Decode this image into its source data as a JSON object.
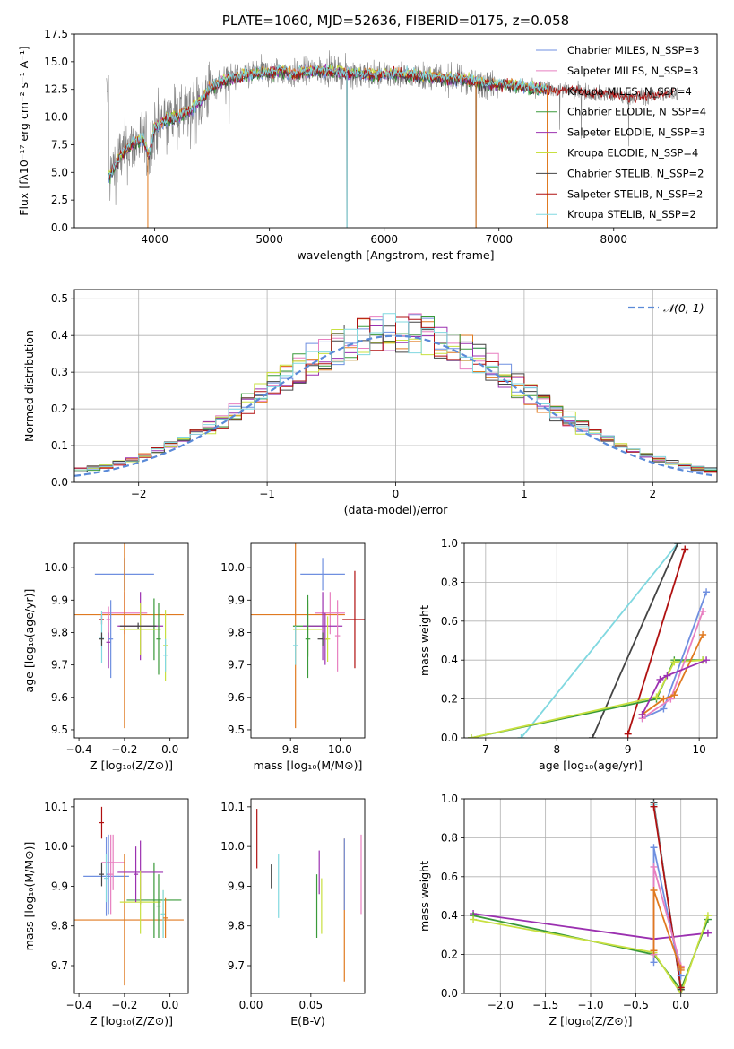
{
  "colors": {
    "chabrier_miles": "#6f8fe0",
    "salpeter_miles": "#e87fc0",
    "kroupa_miles": "#e07a20",
    "chabrier_elodie": "#3a9a3a",
    "salpeter_elodie": "#9b30b0",
    "kroupa_elodie": "#c8e040",
    "chabrier_stelib": "#444444",
    "salpeter_stelib": "#b01010",
    "kroupa_stelib": "#80d8e0",
    "data_gray": "#808080",
    "normal": "#5a8ad8"
  },
  "chart_data": [
    {
      "id": "spectrum",
      "type": "line",
      "title": "PLATE=1060, MJD=52636, FIBERID=0175, z=0.058",
      "xlabel": "wavelength [Angstrom, rest frame]",
      "ylabel": "Flux [fλ10⁻¹⁷ erg cm⁻² s⁻¹ A⁻¹]",
      "xlim": [
        3300,
        8900
      ],
      "ylim": [
        0,
        17.5
      ],
      "xticks": [
        "4000",
        "5000",
        "6000",
        "7000",
        "8000"
      ],
      "yticks": [
        "0.0",
        "2.5",
        "5.0",
        "7.5",
        "10.0",
        "12.5",
        "15.0",
        "17.5"
      ],
      "legend_position": "top-right",
      "legend": [
        "Chabrier MILES, N_SSP=3",
        "Salpeter MILES, N_SSP=3",
        "Kroupa MILES, N_SSP=4",
        "Chabrier ELODIE, N_SSP=4",
        "Salpeter ELODIE, N_SSP=3",
        "Kroupa ELODIE, N_SSP=4",
        "Chabrier STELIB, N_SSP=2",
        "Salpeter STELIB, N_SSP=2",
        "Kroupa STELIB, N_SSP=2"
      ],
      "continuum_points": [
        [
          3600,
          4.5
        ],
        [
          3700,
          6.5
        ],
        [
          3800,
          7.5
        ],
        [
          3900,
          8.0
        ],
        [
          3950,
          6.5
        ],
        [
          4000,
          9.0
        ],
        [
          4100,
          9.8
        ],
        [
          4200,
          10.0
        ],
        [
          4300,
          10.5
        ],
        [
          4400,
          11.5
        ],
        [
          4500,
          12.8
        ],
        [
          4600,
          13.3
        ],
        [
          4700,
          13.6
        ],
        [
          4800,
          13.8
        ],
        [
          4900,
          14.0
        ],
        [
          5000,
          14.0
        ],
        [
          5100,
          14.2
        ],
        [
          5200,
          13.8
        ],
        [
          5300,
          14.1
        ],
        [
          5500,
          14.2
        ],
        [
          5700,
          14.0
        ],
        [
          5900,
          13.8
        ],
        [
          6100,
          13.9
        ],
        [
          6300,
          13.7
        ],
        [
          6500,
          13.5
        ],
        [
          6700,
          13.4
        ],
        [
          6900,
          13.0
        ],
        [
          7100,
          12.9
        ],
        [
          7300,
          12.6
        ],
        [
          7500,
          12.5
        ],
        [
          7700,
          12.3
        ],
        [
          7900,
          12.1
        ],
        [
          8100,
          11.8
        ],
        [
          8300,
          11.9
        ],
        [
          8500,
          12.1
        ]
      ],
      "model_end_wavelength": 7420,
      "gray_end_wavelength": 8560
    },
    {
      "id": "residuals",
      "type": "histogram",
      "xlabel": "(data-model)/error",
      "ylabel": "Normed distribution",
      "xlim": [
        -2.5,
        2.5
      ],
      "ylim": [
        0,
        0.525
      ],
      "xticks": [
        "−2",
        "−1",
        "0",
        "1",
        "2"
      ],
      "yticks": [
        "0.0",
        "0.1",
        "0.2",
        "0.3",
        "0.4",
        "0.5"
      ],
      "grid": true,
      "legend_position": "top-right",
      "normal_label": "𝒩(0, 1)",
      "bin_width": 0.1
    },
    {
      "id": "age_vs_Z",
      "type": "scatter",
      "xlabel": "Z [log₁₀(Z/Z⊙)]",
      "ylabel": "age  [log₁₀(age/yr)]",
      "xlim": [
        -0.42,
        0.08
      ],
      "ylim": [
        9.475,
        10.075
      ],
      "xticks": [
        "−0.4",
        "−0.2",
        "0.0"
      ],
      "yticks": [
        "9.5",
        "9.6",
        "9.7",
        "9.8",
        "9.9",
        "10.0"
      ],
      "points": [
        {
          "series": "chabrier_miles",
          "x": -0.2,
          "xerr": 0.13,
          "y": 9.98,
          "yerr": 0.05
        },
        {
          "series": "salpeter_miles",
          "x": -0.2,
          "xerr": 0.1,
          "y": 9.86,
          "yerr": 0.065
        },
        {
          "series": "kroupa_miles",
          "x": -0.2,
          "xerr": 0.26,
          "y": 9.855,
          "yerr": 0.35
        },
        {
          "series": "chabrier_elodie",
          "x": -0.07,
          "xerr": 0.03,
          "y": 9.81,
          "yerr": 0.095
        },
        {
          "series": "salpeter_elodie",
          "x": -0.13,
          "xerr": 0.1,
          "y": 9.82,
          "yerr": 0.105
        },
        {
          "series": "kroupa_elodie",
          "x": -0.13,
          "xerr": 0.09,
          "y": 9.81,
          "yerr": 0.08
        },
        {
          "series": "chabrier_stelib",
          "x": -0.14,
          "xerr": 0.08,
          "y": 9.82,
          "yerr": 0.01
        },
        {
          "series": "salpeter_stelib",
          "x": -0.3,
          "xerr": 0.01,
          "y": 9.84,
          "yerr": 0.015
        },
        {
          "series": "kroupa_stelib",
          "x": -0.3,
          "xerr": 0.01,
          "y": 9.785,
          "yerr": 0.08
        },
        {
          "series": "chabrier_stelib",
          "x": -0.3,
          "xerr": 0.01,
          "y": 9.78,
          "yerr": 0.02
        },
        {
          "series": "salpeter_elodie",
          "x": -0.27,
          "xerr": 0.01,
          "y": 9.77,
          "yerr": 0.08
        },
        {
          "series": "chabrier_miles",
          "x": -0.26,
          "xerr": 0.01,
          "y": 9.78,
          "yerr": 0.12
        },
        {
          "series": "salpeter_miles",
          "x": -0.27,
          "xerr": 0.01,
          "y": 9.84,
          "yerr": 0.04
        },
        {
          "series": "kroupa_elodie",
          "x": -0.02,
          "xerr": 0.01,
          "y": 9.76,
          "yerr": 0.11
        },
        {
          "series": "kroupa_stelib",
          "x": -0.02,
          "xerr": 0.01,
          "y": 9.73,
          "yerr": 0.05
        },
        {
          "series": "chabrier_elodie",
          "x": -0.05,
          "xerr": 0.01,
          "y": 9.78,
          "yerr": 0.11
        }
      ]
    },
    {
      "id": "age_vs_mass",
      "type": "scatter",
      "xlabel": "mass [log₁₀(M/M⊙)]",
      "ylabel": "",
      "xlim": [
        9.64,
        10.1
      ],
      "ylim": [
        9.475,
        10.075
      ],
      "xticks": [
        "9.8",
        "10.0"
      ],
      "yticks": [
        "9.5",
        "9.6",
        "9.7",
        "9.8",
        "9.9",
        "10.0"
      ],
      "points": [
        {
          "series": "chabrier_miles",
          "x": 9.93,
          "xerr": 0.09,
          "y": 9.98,
          "yerr": 0.05
        },
        {
          "series": "salpeter_miles",
          "x": 9.96,
          "xerr": 0.06,
          "y": 9.86,
          "yerr": 0.065
        },
        {
          "series": "kroupa_miles",
          "x": 9.82,
          "xerr": 0.2,
          "y": 9.855,
          "yerr": 0.35
        },
        {
          "series": "chabrier_elodie",
          "x": 9.87,
          "xerr": 0.06,
          "y": 9.82,
          "yerr": 0.095
        },
        {
          "series": "salpeter_elodie",
          "x": 9.93,
          "xerr": 0.08,
          "y": 9.82,
          "yerr": 0.105
        },
        {
          "series": "kroupa_elodie",
          "x": 9.87,
          "xerr": 0.06,
          "y": 9.81,
          "yerr": 0.08
        },
        {
          "series": "chabrier_stelib",
          "x": 9.93,
          "xerr": 0.02,
          "y": 9.78,
          "yerr": 0.02
        },
        {
          "series": "salpeter_stelib",
          "x": 10.06,
          "xerr": 0.05,
          "y": 9.84,
          "yerr": 0.15
        },
        {
          "series": "kroupa_stelib",
          "x": 9.82,
          "xerr": 0.01,
          "y": 9.76,
          "yerr": 0.06
        },
        {
          "series": "salpeter_miles",
          "x": 9.99,
          "xerr": 0.01,
          "y": 9.79,
          "yerr": 0.11
        },
        {
          "series": "chabrier_elodie",
          "x": 9.87,
          "xerr": 0.01,
          "y": 9.78,
          "yerr": 0.12
        },
        {
          "series": "salpeter_elodie",
          "x": 9.94,
          "xerr": 0.01,
          "y": 9.78,
          "yerr": 0.08
        },
        {
          "series": "kroupa_elodie",
          "x": 9.95,
          "xerr": 0.01,
          "y": 9.78,
          "yerr": 0.07
        }
      ]
    },
    {
      "id": "mw_vs_age",
      "type": "line",
      "xlabel": "age  [log₁₀(age/yr)]",
      "ylabel": "mass weight",
      "xlim": [
        6.7,
        10.25
      ],
      "ylim": [
        0,
        1
      ],
      "xticks": [
        "7",
        "8",
        "9",
        "10"
      ],
      "yticks": [
        "0.0",
        "0.2",
        "0.4",
        "0.6",
        "0.8",
        "1.0"
      ],
      "grid": true,
      "series": [
        {
          "key": "kroupa_stelib",
          "x": [
            7.5,
            9.7
          ],
          "y": [
            0.0,
            1.0
          ]
        },
        {
          "key": "chabrier_stelib",
          "x": [
            8.5,
            9.7
          ],
          "y": [
            0.0,
            1.0
          ]
        },
        {
          "key": "salpeter_stelib",
          "x": [
            9.0,
            9.8
          ],
          "y": [
            0.02,
            0.97
          ]
        },
        {
          "key": "chabrier_elodie",
          "x": [
            6.8,
            9.4,
            9.65,
            10.05
          ],
          "y": [
            0.0,
            0.2,
            0.4,
            0.4
          ]
        },
        {
          "key": "kroupa_elodie",
          "x": [
            6.8,
            9.4,
            9.65,
            10.05
          ],
          "y": [
            0.0,
            0.21,
            0.39,
            0.4
          ]
        },
        {
          "key": "chabrier_miles",
          "x": [
            9.2,
            9.5,
            10.1
          ],
          "y": [
            0.1,
            0.15,
            0.75
          ]
        },
        {
          "key": "salpeter_miles",
          "x": [
            9.2,
            9.6,
            10.05
          ],
          "y": [
            0.1,
            0.2,
            0.65
          ]
        },
        {
          "key": "kroupa_miles",
          "x": [
            9.2,
            9.5,
            9.65,
            10.05
          ],
          "y": [
            0.12,
            0.2,
            0.22,
            0.53
          ]
        },
        {
          "key": "salpeter_elodie",
          "x": [
            9.2,
            9.45,
            9.55,
            10.1
          ],
          "y": [
            0.12,
            0.3,
            0.32,
            0.4
          ]
        }
      ]
    },
    {
      "id": "mass_vs_Z",
      "type": "scatter",
      "xlabel": "Z [log₁₀(Z/Z⊙)]",
      "ylabel": "mass [log₁₀(M/M⊙)]",
      "xlim": [
        -0.42,
        0.08
      ],
      "ylim": [
        9.63,
        10.12
      ],
      "xticks": [
        "−0.4",
        "−0.2",
        "0.0"
      ],
      "yticks": [
        "9.7",
        "9.8",
        "9.9",
        "10.0",
        "10.1"
      ],
      "points": [
        {
          "series": "chabrier_miles",
          "x": -0.28,
          "xerr": 0.1,
          "y": 9.925,
          "yerr": 0.1
        },
        {
          "series": "salpeter_miles",
          "x": -0.25,
          "xerr": 0.05,
          "y": 9.96,
          "yerr": 0.07
        },
        {
          "series": "kroupa_miles",
          "x": -0.2,
          "xerr": 0.26,
          "y": 9.815,
          "yerr": 0.165
        },
        {
          "series": "chabrier_elodie",
          "x": -0.07,
          "xerr": 0.12,
          "y": 9.865,
          "yerr": 0.095
        },
        {
          "series": "salpeter_elodie",
          "x": -0.13,
          "xerr": 0.1,
          "y": 9.935,
          "yerr": 0.08
        },
        {
          "series": "kroupa_elodie",
          "x": -0.13,
          "xerr": 0.09,
          "y": 9.86,
          "yerr": 0.08
        },
        {
          "series": "chabrier_stelib",
          "x": -0.3,
          "xerr": 0.01,
          "y": 9.93,
          "yerr": 0.03
        },
        {
          "series": "salpeter_stelib",
          "x": -0.3,
          "xerr": 0.01,
          "y": 10.06,
          "yerr": 0.04
        },
        {
          "series": "kroupa_stelib",
          "x": -0.28,
          "xerr": 0.01,
          "y": 9.92,
          "yerr": 0.06
        },
        {
          "series": "chabrier_miles",
          "x": -0.27,
          "xerr": 0.01,
          "y": 9.93,
          "yerr": 0.1
        },
        {
          "series": "salpeter_miles",
          "x": -0.26,
          "xerr": 0.01,
          "y": 9.93,
          "yerr": 0.1
        },
        {
          "series": "salpeter_elodie",
          "x": -0.15,
          "xerr": 0.01,
          "y": 9.93,
          "yerr": 0.07
        },
        {
          "series": "chabrier_elodie",
          "x": -0.05,
          "xerr": 0.01,
          "y": 9.85,
          "yerr": 0.08
        },
        {
          "series": "kroupa_elodie",
          "x": -0.03,
          "xerr": 0.01,
          "y": 9.83,
          "yerr": 0.06
        },
        {
          "series": "kroupa_stelib",
          "x": -0.03,
          "xerr": 0.01,
          "y": 9.83,
          "yerr": 0.06
        },
        {
          "series": "kroupa_miles",
          "x": -0.02,
          "xerr": 0.01,
          "y": 9.82,
          "yerr": 0.05
        }
      ]
    },
    {
      "id": "mass_vs_ebv",
      "type": "scatter",
      "xlabel": "E(B-V)",
      "ylabel": "",
      "xlim": [
        0,
        0.095
      ],
      "ylim": [
        9.63,
        10.12
      ],
      "xticks": [
        "0.00",
        "0.05"
      ],
      "yticks": [
        "9.7",
        "9.8",
        "9.9",
        "10.0",
        "10.1"
      ],
      "points": [
        {
          "series": "salpeter_stelib",
          "x": 0.005,
          "y": 10.02,
          "yerr": 0.075
        },
        {
          "series": "chabrier_stelib",
          "x": 0.017,
          "y": 9.925,
          "yerr": 0.03
        },
        {
          "series": "kroupa_stelib",
          "x": 0.023,
          "y": 9.9,
          "yerr": 0.08
        },
        {
          "series": "chabrier_elodie",
          "x": 0.055,
          "y": 9.85,
          "yerr": 0.08
        },
        {
          "series": "salpeter_elodie",
          "x": 0.057,
          "y": 9.935,
          "yerr": 0.055
        },
        {
          "series": "kroupa_elodie",
          "x": 0.059,
          "y": 9.85,
          "yerr": 0.07
        },
        {
          "series": "kroupa_miles",
          "x": 0.078,
          "y": 9.84,
          "yerr": 0.18
        },
        {
          "series": "chabrier_miles",
          "x": 0.078,
          "y": 9.93,
          "yerr": 0.09
        },
        {
          "series": "salpeter_miles",
          "x": 0.092,
          "y": 9.93,
          "yerr": 0.1
        }
      ]
    },
    {
      "id": "mw_vs_Z",
      "type": "line",
      "xlabel": "Z [log₁₀(Z/Z⊙)]",
      "ylabel": "mass weight",
      "xlim": [
        -2.4,
        0.4
      ],
      "ylim": [
        0,
        1
      ],
      "xticks": [
        "−2.0",
        "−1.5",
        "−1.0",
        "−0.5",
        "0.0"
      ],
      "yticks": [
        "0.0",
        "0.2",
        "0.4",
        "0.6",
        "0.8",
        "1.0"
      ],
      "grid": true,
      "series": [
        {
          "key": "salpeter_elodie",
          "x": [
            -2.3,
            -0.3,
            0.3
          ],
          "y": [
            0.41,
            0.28,
            0.31
          ]
        },
        {
          "key": "chabrier_elodie",
          "x": [
            -2.3,
            -0.3,
            0.0,
            0.3
          ],
          "y": [
            0.4,
            0.2,
            0.02,
            0.38
          ]
        },
        {
          "key": "kroupa_elodie",
          "x": [
            -2.3,
            -0.3,
            0.0,
            0.3
          ],
          "y": [
            0.38,
            0.21,
            0.0,
            0.4
          ]
        },
        {
          "key": "chabrier_stelib",
          "x": [
            -0.3,
            0.0
          ],
          "y": [
            0.98,
            0.02
          ]
        },
        {
          "key": "kroupa_stelib",
          "x": [
            -0.3,
            0.0
          ],
          "y": [
            0.97,
            0.03
          ]
        },
        {
          "key": "salpeter_stelib",
          "x": [
            -0.3,
            0.0
          ],
          "y": [
            0.96,
            0.03
          ]
        },
        {
          "key": "chabrier_miles",
          "x": [
            -0.3,
            -0.3,
            0.0
          ],
          "y": [
            0.16,
            0.75,
            0.09
          ]
        },
        {
          "key": "salpeter_miles",
          "x": [
            -0.3,
            -0.3,
            0.0
          ],
          "y": [
            0.2,
            0.65,
            0.14
          ]
        },
        {
          "key": "kroupa_miles",
          "x": [
            -0.3,
            -0.3,
            0.0,
            0.0
          ],
          "y": [
            0.22,
            0.53,
            0.12,
            0.13
          ]
        }
      ]
    }
  ]
}
